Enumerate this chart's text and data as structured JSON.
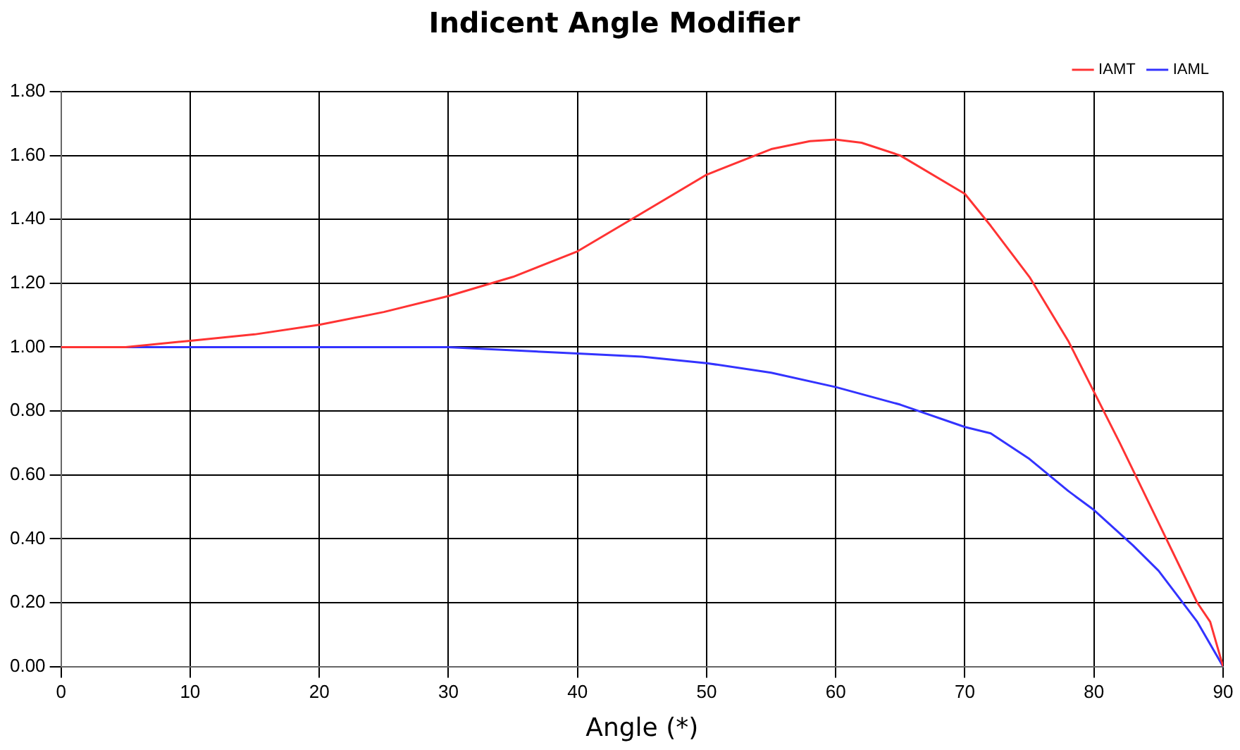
{
  "chart_data": {
    "type": "line",
    "title": "Indicent Angle Modifier",
    "xlabel": "Angle (*)",
    "xlim": [
      0,
      90
    ],
    "xticks": [
      0,
      10,
      20,
      30,
      40,
      50,
      60,
      70,
      80,
      90
    ],
    "ylim": [
      0,
      1.8
    ],
    "yticks": [
      {
        "value": 0,
        "label": "0.00"
      },
      {
        "value": 0.2,
        "label": "0.20"
      },
      {
        "value": 0.4,
        "label": "0.40"
      },
      {
        "value": 0.6,
        "label": "0.60"
      },
      {
        "value": 0.8,
        "label": "0.80"
      },
      {
        "value": 1,
        "label": "1.00"
      },
      {
        "value": 1.2,
        "label": "1.20"
      },
      {
        "value": 1.4,
        "label": "1.40"
      },
      {
        "value": 1.6,
        "label": "1.60"
      },
      {
        "value": 1.8,
        "label": "1.80"
      }
    ],
    "grid": true,
    "legend": "top right",
    "marker": "none",
    "series": [
      {
        "name": "IAMT",
        "color": "#ff3333",
        "x": [
          0,
          5,
          10,
          15,
          20,
          25,
          30,
          35,
          40,
          45,
          50,
          55,
          58,
          60,
          62,
          65,
          70,
          72,
          75,
          78,
          80,
          82,
          85,
          88,
          89,
          90
        ],
        "values": [
          1.0,
          1.0,
          1.02,
          1.04,
          1.07,
          1.11,
          1.16,
          1.22,
          1.3,
          1.42,
          1.54,
          1.62,
          1.645,
          1.65,
          1.64,
          1.6,
          1.48,
          1.38,
          1.22,
          1.02,
          0.86,
          0.7,
          0.45,
          0.2,
          0.14,
          0
        ]
      },
      {
        "name": "IAML",
        "color": "#3333ff",
        "x": [
          0,
          10,
          20,
          30,
          40,
          45,
          50,
          55,
          60,
          65,
          70,
          72,
          75,
          78,
          80,
          83,
          85,
          88,
          90
        ],
        "values": [
          1.0,
          1.0,
          1.0,
          1.0,
          0.98,
          0.97,
          0.95,
          0.92,
          0.875,
          0.82,
          0.75,
          0.73,
          0.65,
          0.55,
          0.49,
          0.38,
          0.3,
          0.14,
          0
        ]
      }
    ]
  }
}
